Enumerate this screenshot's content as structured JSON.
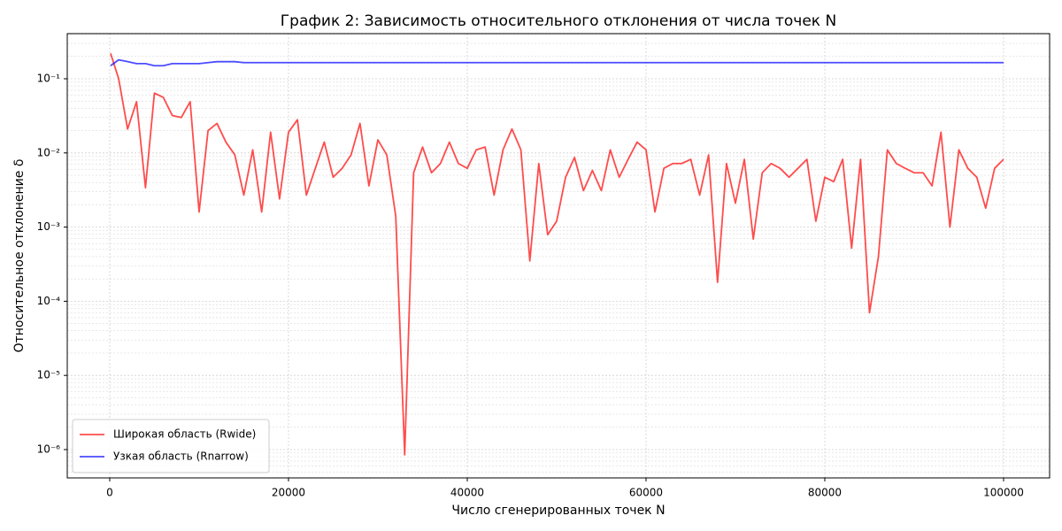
{
  "chart_data": {
    "type": "line",
    "title": "График 2: Зависимость относительного отклонения от числа точек N",
    "xlabel": "Число сгенерированных точек N",
    "ylabel": "Относительное отклонение δ",
    "x": [
      100,
      1000,
      2000,
      3000,
      4000,
      5000,
      6000,
      7000,
      8000,
      9000,
      10000,
      11000,
      12000,
      13000,
      14000,
      15000,
      16000,
      17000,
      18000,
      19000,
      20000,
      21000,
      22000,
      23000,
      24000,
      25000,
      26000,
      27000,
      28000,
      29000,
      30000,
      31000,
      32000,
      33000,
      34000,
      35000,
      36000,
      37000,
      38000,
      39000,
      40000,
      41000,
      42000,
      43000,
      44000,
      45000,
      46000,
      47000,
      48000,
      49000,
      50000,
      51000,
      52000,
      53000,
      54000,
      55000,
      56000,
      57000,
      58000,
      59000,
      60000,
      61000,
      62000,
      63000,
      64000,
      65000,
      66000,
      67000,
      68000,
      69000,
      70000,
      71000,
      72000,
      73000,
      74000,
      75000,
      76000,
      77000,
      78000,
      79000,
      80000,
      81000,
      82000,
      83000,
      84000,
      85000,
      86000,
      87000,
      88000,
      89000,
      90000,
      91000,
      92000,
      93000,
      94000,
      95000,
      96000,
      97000,
      98000,
      99000,
      100000
    ],
    "series": [
      {
        "name": "Широкая область (Rwide)",
        "color": "#ff0000",
        "values": [
          0.22,
          0.1,
          0.021,
          0.049,
          0.0034,
          0.064,
          0.056,
          0.032,
          0.03,
          0.049,
          0.0016,
          0.02,
          0.025,
          0.014,
          0.0094,
          0.0027,
          0.011,
          0.0016,
          0.019,
          0.0024,
          0.019,
          0.028,
          0.0027,
          0.0062,
          0.014,
          0.0047,
          0.0062,
          0.0094,
          0.025,
          0.0036,
          0.015,
          0.0094,
          0.0014,
          8.5e-07,
          0.0054,
          0.012,
          0.0054,
          0.0072,
          0.014,
          0.0072,
          0.0062,
          0.011,
          0.012,
          0.0027,
          0.011,
          0.021,
          0.011,
          0.00035,
          0.0072,
          0.00079,
          0.0012,
          0.0047,
          0.0087,
          0.0031,
          0.0058,
          0.0031,
          0.011,
          0.0047,
          0.0082,
          0.014,
          0.011,
          0.0016,
          0.0062,
          0.0072,
          0.0072,
          0.0082,
          0.0027,
          0.0094,
          0.00018,
          0.0072,
          0.0021,
          0.0082,
          0.00069,
          0.0054,
          0.0072,
          0.0062,
          0.0047,
          0.0062,
          0.0082,
          0.0012,
          0.0047,
          0.0041,
          0.0082,
          0.00052,
          0.0082,
          7e-05,
          0.0004,
          0.011,
          0.0072,
          0.0062,
          0.0054,
          0.0054,
          0.0036,
          0.019,
          0.001,
          0.011,
          0.0062,
          0.0047,
          0.0018,
          0.0062,
          0.0082
        ]
      },
      {
        "name": "Узкая область (Rnarrow)",
        "color": "#0000ff",
        "values": [
          0.15,
          0.18,
          0.17,
          0.16,
          0.16,
          0.15,
          0.15,
          0.16,
          0.16,
          0.16,
          0.16,
          0.165,
          0.17,
          0.17,
          0.17,
          0.165,
          0.165,
          0.165,
          0.165,
          0.165,
          0.165,
          0.165,
          0.165,
          0.165,
          0.165,
          0.165,
          0.165,
          0.165,
          0.165,
          0.165,
          0.165,
          0.165,
          0.165,
          0.165,
          0.165,
          0.165,
          0.165,
          0.165,
          0.165,
          0.165,
          0.165,
          0.165,
          0.165,
          0.165,
          0.165,
          0.165,
          0.165,
          0.165,
          0.165,
          0.165,
          0.165,
          0.165,
          0.165,
          0.165,
          0.165,
          0.165,
          0.165,
          0.165,
          0.165,
          0.165,
          0.165,
          0.165,
          0.165,
          0.165,
          0.165,
          0.165,
          0.165,
          0.165,
          0.165,
          0.165,
          0.165,
          0.165,
          0.165,
          0.165,
          0.165,
          0.165,
          0.165,
          0.165,
          0.165,
          0.165,
          0.165,
          0.165,
          0.165,
          0.165,
          0.165,
          0.165,
          0.165,
          0.165,
          0.165,
          0.165,
          0.165,
          0.165,
          0.165,
          0.165,
          0.165,
          0.165,
          0.165,
          0.165,
          0.165,
          0.165,
          0.165
        ]
      }
    ],
    "alpha": 0.7,
    "xlim": [
      -4750,
      105150
    ],
    "xticks": [
      0,
      20000,
      40000,
      60000,
      80000,
      100000
    ],
    "ylim": [
      4.15e-07,
      0.406
    ],
    "yticks": [
      {
        "value": 0.1,
        "label": "10⁻¹"
      },
      {
        "value": 0.01,
        "label": "10⁻²"
      },
      {
        "value": 0.001,
        "label": "10⁻³"
      },
      {
        "value": 0.0001,
        "label": "10⁻⁴"
      },
      {
        "value": 1e-05,
        "label": "10⁻⁵"
      },
      {
        "value": 1e-06,
        "label": "10⁻⁶"
      }
    ],
    "ylog": true,
    "grid": true,
    "minor_grid": true,
    "legend": "lower left"
  }
}
